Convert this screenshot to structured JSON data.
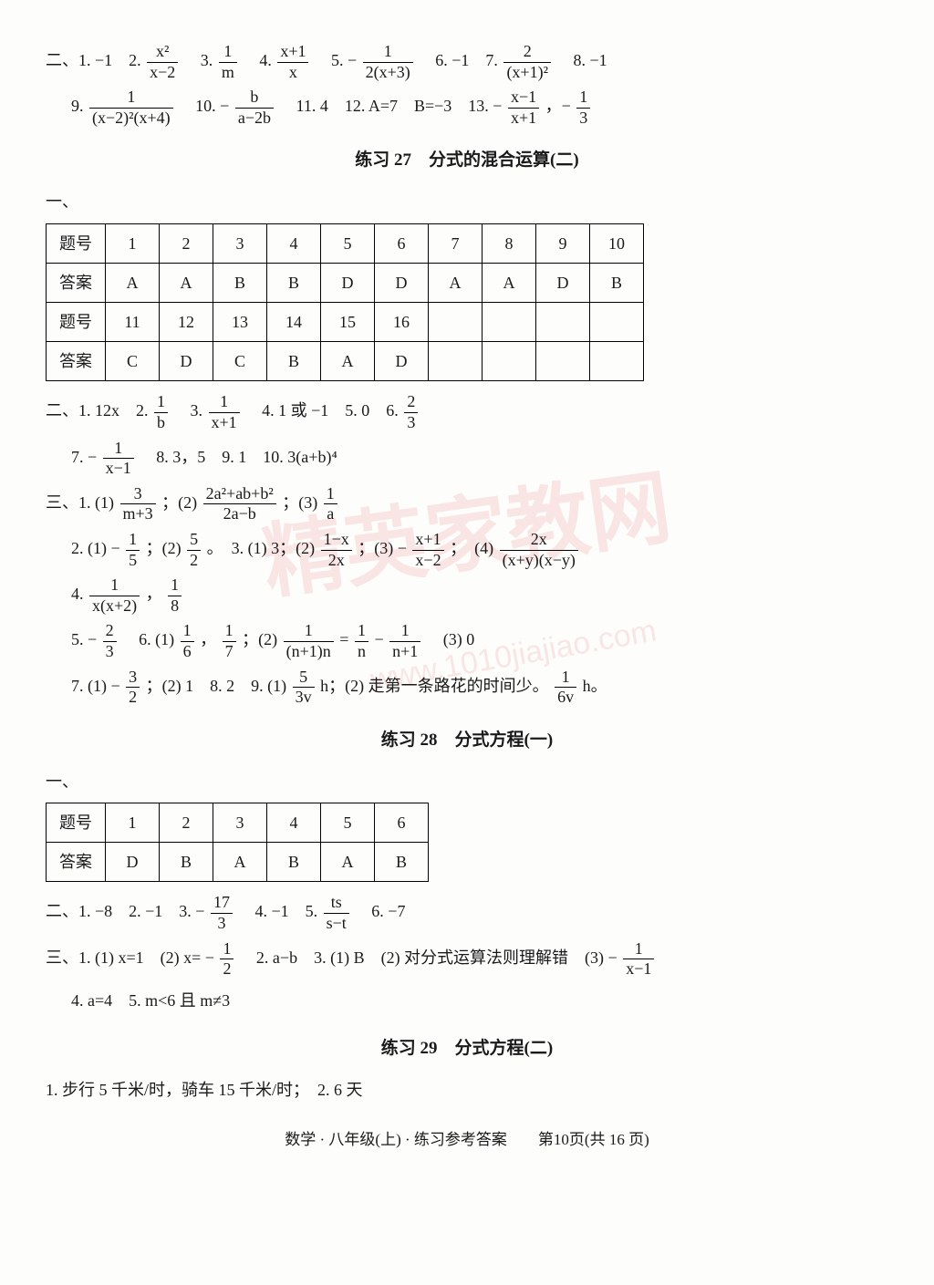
{
  "watermark_text": "精英家教网",
  "watermark_url": "www.1010jiajiao.com",
  "section26_line1_prefix": "二、1. −1　2. ",
  "f26_2_num": "x²",
  "f26_2_den": "x−2",
  "s26_3": "　3. ",
  "f26_3_num": "1",
  "f26_3_den": "m",
  "s26_4": "　4. ",
  "f26_4_num": "x+1",
  "f26_4_den": "x",
  "s26_5": "　5. − ",
  "f26_5_num": "1",
  "f26_5_den": "2(x+3)",
  "s26_6": "　6. −1　7. ",
  "f26_7_num": "2",
  "f26_7_den": "(x+1)²",
  "s26_8": "　8. −1",
  "s26_9": "9. ",
  "f26_9_num": "1",
  "f26_9_den": "(x−2)²(x+4)",
  "s26_10": "　10. − ",
  "f26_10_num": "b",
  "f26_10_den": "a−2b",
  "s26_11": "　11. 4　12. A=7　B=−3　13. − ",
  "f26_13a_num": "x−1",
  "f26_13a_den": "x+1",
  "s26_13b": "，− ",
  "f26_13b_num": "1",
  "f26_13b_den": "3",
  "title27": "练习 27　分式的混合运算(二)",
  "sec1_marker": "一、",
  "t27_row_label1": "题号",
  "t27_row_label2": "答案",
  "t27_h": [
    "1",
    "2",
    "3",
    "4",
    "5",
    "6",
    "7",
    "8",
    "9",
    "10"
  ],
  "t27_a": [
    "A",
    "A",
    "B",
    "B",
    "D",
    "D",
    "A",
    "A",
    "D",
    "B"
  ],
  "t27_h2": [
    "11",
    "12",
    "13",
    "14",
    "15",
    "16",
    "",
    "",
    "",
    ""
  ],
  "t27_a2": [
    "C",
    "D",
    "C",
    "B",
    "A",
    "D",
    "",
    "",
    "",
    ""
  ],
  "s27b_1": "二、1. 12x　2. ",
  "f27b_2n": "1",
  "f27b_2d": "b",
  "s27b_3": "　3. ",
  "f27b_3n": "1",
  "f27b_3d": "x+1",
  "s27b_4": "　4. 1 或 −1　5. 0　6. ",
  "f27b_6n": "2",
  "f27b_6d": "3",
  "s27b_7": "7. − ",
  "f27b_7n": "1",
  "f27b_7d": "x−1",
  "s27b_8": "　8. 3，5　9. 1　10. 3(a+b)⁴",
  "s27c_1": "三、1. (1) ",
  "f27c_1an": "3",
  "f27c_1ad": "m+3",
  "s27c_1b": "；(2) ",
  "f27c_1bn": "2a²+ab+b²",
  "f27c_1bd": "2a−b",
  "s27c_1c": "；(3) ",
  "f27c_1cn": "1",
  "f27c_1cd": "a",
  "s27c_2": "2. (1) − ",
  "f27c_2an": "1",
  "f27c_2ad": "5",
  "s27c_2b": "；(2) ",
  "f27c_2bn": "5",
  "f27c_2bd": "2",
  "s27c_2c": "。　3. (1) 3；(2) ",
  "f27c_3bn": "1−x",
  "f27c_3bd": "2x",
  "s27c_3c": "；(3) − ",
  "f27c_3cn": "x+1",
  "f27c_3cd": "x−2",
  "s27c_3d": "；　(4) ",
  "f27c_3dn": "2x",
  "f27c_3dd": "(x+y)(x−y)",
  "s27c_4": "4. ",
  "f27c_4an": "1",
  "f27c_4ad": "x(x+2)",
  "s27c_4b": "，",
  "f27c_4bn": "1",
  "f27c_4bd": "8",
  "s27c_5": "5. − ",
  "f27c_5an": "2",
  "f27c_5ad": "3",
  "s27c_6": "　6. (1) ",
  "f27c_6an": "1",
  "f27c_6ad": "6",
  "s27c_6b": "，",
  "f27c_6bn": "1",
  "f27c_6bd": "7",
  "s27c_6c": "；(2) ",
  "f27c_6cn": "1",
  "f27c_6cd": "(n+1)n",
  "s27c_6eq": " = ",
  "f27c_6dn": "1",
  "f27c_6dd": "n",
  "s27c_6m": " − ",
  "f27c_6en": "1",
  "f27c_6ed": "n+1",
  "s27c_6f": "　(3) 0",
  "s27c_7": "7. (1) − ",
  "f27c_7an": "3",
  "f27c_7ad": "2",
  "s27c_7b": "；(2) 1　8. 2　9. (1) ",
  "f27c_9an": "5",
  "f27c_9ad": "3v",
  "s27c_9b": " h；(2) 走第一条路花的时间少。",
  "f27c_9bn": "1",
  "f27c_9bd": "6v",
  "s27c_9c": " h。",
  "title28": "练习 28　分式方程(一)",
  "t28_h": [
    "1",
    "2",
    "3",
    "4",
    "5",
    "6"
  ],
  "t28_a": [
    "D",
    "B",
    "A",
    "B",
    "A",
    "B"
  ],
  "s28b_1": "二、1. −8　2. −1　3. − ",
  "f28b_3n": "17",
  "f28b_3d": "3",
  "s28b_4": "　4. −1　5. ",
  "f28b_5n": "ts",
  "f28b_5d": "s−t",
  "s28b_6": "　6. −7",
  "s28c_1": "三、1. (1) x=1　(2) x= − ",
  "f28c_1n": "1",
  "f28c_1d": "2",
  "s28c_2": "　2. a−b　3. (1) B　(2) 对分式运算法则理解错　(3) − ",
  "f28c_3n": "1",
  "f28c_3d": "x−1",
  "s28c_4": "4. a=4　5. m<6 且 m≠3",
  "title29": "练习 29　分式方程(二)",
  "s29_1": "1. 步行 5 千米/时，骑车 15 千米/时；　2. 6 天",
  "footer": "数学 · 八年级(上) · 练习参考答案　　第10页(共 16 页)"
}
